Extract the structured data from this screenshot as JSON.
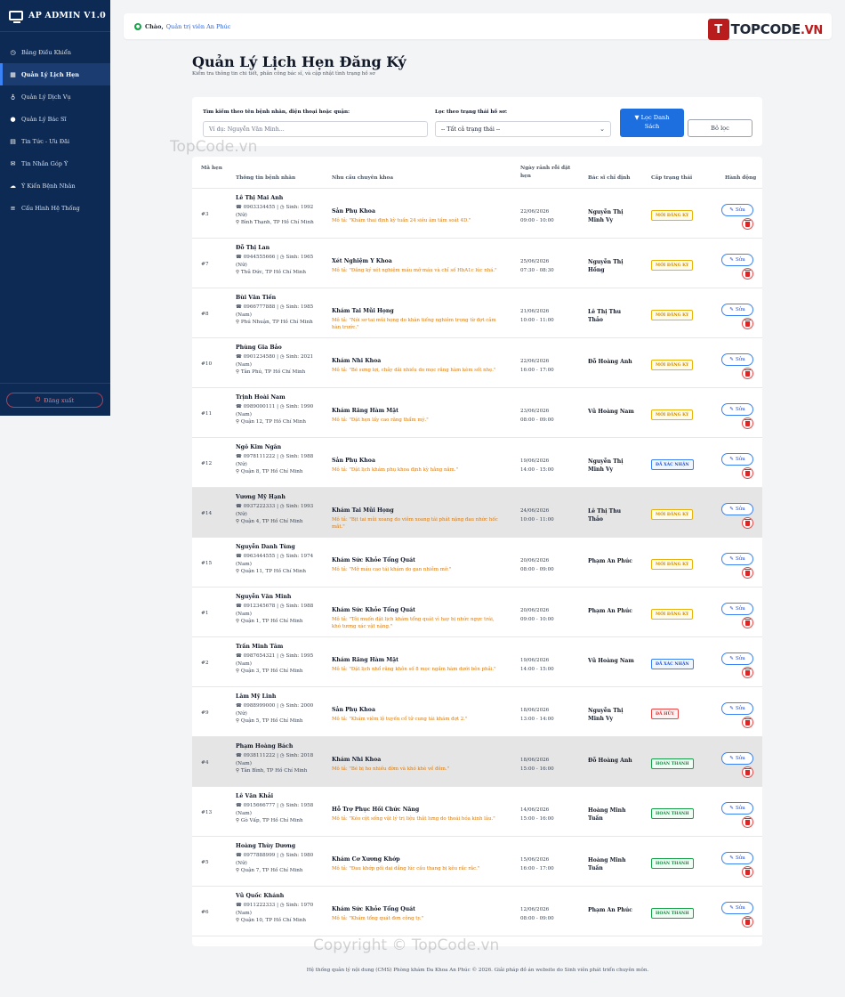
{
  "sidebar": {
    "brand": "AP ADMIN V1.0",
    "items": [
      {
        "label": "Bảng Điều Khiển",
        "icon": "dashboard-icon",
        "glyph": "◷",
        "active": false
      },
      {
        "label": "Quản Lý Lịch Hẹn",
        "icon": "calendar-icon",
        "glyph": "▦",
        "active": true
      },
      {
        "label": "Quản Lý Dịch Vụ",
        "icon": "stethoscope-icon",
        "glyph": "♁",
        "active": false
      },
      {
        "label": "Quản Lý Bác Sĩ",
        "icon": "doctor-icon",
        "glyph": "●",
        "active": false
      },
      {
        "label": "Tin Tức - Ưu Đãi",
        "icon": "newspaper-icon",
        "glyph": "▤",
        "active": false
      },
      {
        "label": "Tin Nhắn Góp Ý",
        "icon": "envelope-icon",
        "glyph": "✉",
        "active": false
      },
      {
        "label": "Ý Kiến Bệnh Nhân",
        "icon": "comments-icon",
        "glyph": "☁",
        "active": false
      },
      {
        "label": "Cấu Hình Hệ Thống",
        "icon": "sliders-icon",
        "glyph": "≡",
        "active": false
      }
    ],
    "logout": "Đăng xuất"
  },
  "topbar": {
    "greeting": "Chào,",
    "user": "Quản trị viên An Phúc",
    "logo_main": "TOPCODE",
    "logo_suffix": ".VN"
  },
  "watermarks": {
    "mid": "TopCode.vn",
    "bottom": "Copyright © TopCode.vn"
  },
  "page": {
    "title": "Quản Lý Lịch Hẹn Đăng Ký",
    "subtitle": "Kiểm tra thông tin chi tiết, phân công bác sĩ, và cập nhật tình trạng hồ sơ"
  },
  "filter": {
    "search_label": "Tìm kiếm theo tên bệnh nhân, điện thoại hoặc quận:",
    "search_placeholder": "Ví dụ: Nguyễn Văn Minh...",
    "status_label": "Lọc theo trạng thái hồ sơ:",
    "status_value": "-- Tất cả trạng thái --",
    "filter_button_line1": "Lọc Danh",
    "filter_button_line2": "Sách",
    "clear_button": "Bỏ lọc"
  },
  "table": {
    "headers": {
      "id": "Mã hẹn",
      "patient": "Thông tin bệnh nhân",
      "need": "Nhu cầu chuyên khoa",
      "date": "Ngày rảnh rỗi đặt hẹn",
      "doctor": "Bác sĩ chỉ định",
      "status": "Cấp trạng thái",
      "action": "Hành động"
    },
    "edit_label": "Sửa",
    "rows": [
      {
        "id": "#3",
        "name": "Lê Thị Mai Anh",
        "phone": "0903334455",
        "birth": "Sinh: 1992",
        "gender": "(Nữ)",
        "address": "Bình Thạnh, TP Hồ Chí Minh",
        "specialty": "Sản Phụ Khoa",
        "desc": "Mô tả: \"Khám thai định kỳ tuần 24 siêu âm tầm soát 4D.\"",
        "date": "22/06/2026",
        "time": "09:00 - 10:00",
        "doctor": "Nguyễn Thị Minh Vy",
        "status": "MỚI ĐĂNG KÝ",
        "status_type": "new",
        "highlight": false
      },
      {
        "id": "#7",
        "name": "Đỗ Thị Lan",
        "phone": "0944555666",
        "birth": "Sinh: 1965",
        "gender": "(Nữ)",
        "address": "Thủ Đức, TP Hồ Chí Minh",
        "specialty": "Xét Nghiệm Y Khoa",
        "desc": "Mô tả: \"Đăng ký xét nghiệm máu mỡ máu và chỉ số HbA1c lúc nhá.\"",
        "date": "25/06/2026",
        "time": "07:30 - 08:30",
        "doctor": "Nguyễn Thị Hồng",
        "status": "MỚI ĐĂNG KÝ",
        "status_type": "new",
        "highlight": false
      },
      {
        "id": "#8",
        "name": "Bùi Văn Tiến",
        "phone": "0966777888",
        "birth": "Sinh: 1985",
        "gender": "(Nam)",
        "address": "Phú Nhuận, TP Hồ Chí Minh",
        "specialty": "Khám Tai Mũi Họng",
        "desc": "Mô tả: \"Nói sơ tai mũi họng do khàn tiếng nghiêm trọng từ đợt cảm hàn trước.\"",
        "date": "21/06/2026",
        "time": "10:00 - 11:00",
        "doctor": "Lê Thị Thu Thảo",
        "status": "MỚI ĐĂNG KÝ",
        "status_type": "new",
        "highlight": false
      },
      {
        "id": "#10",
        "name": "Phùng Gia Bảo",
        "phone": "0901234580",
        "birth": "Sinh: 2021",
        "gender": "(Nam)",
        "address": "Tân Phú, TP Hồ Chí Minh",
        "specialty": "Khám Nhi Khoa",
        "desc": "Mô tả: \"Bé sưng lợi, chảy dãi nhiều do mọc răng hàm kèm sốt nhẹ.\"",
        "date": "22/06/2026",
        "time": "16:00 - 17:00",
        "doctor": "Đỗ Hoàng Anh",
        "status": "MỚI ĐĂNG KÝ",
        "status_type": "new",
        "highlight": false
      },
      {
        "id": "#11",
        "name": "Trịnh Hoài Nam",
        "phone": "0989000111",
        "birth": "Sinh: 1990",
        "gender": "(Nam)",
        "address": "Quận 12, TP Hồ Chí Minh",
        "specialty": "Khám Răng Hàm Mặt",
        "desc": "Mô tả: \"Đặt hẹn lấy cao răng thẩm mỹ.\"",
        "date": "23/06/2026",
        "time": "08:00 - 09:00",
        "doctor": "Vũ Hoàng Nam",
        "status": "MỚI ĐĂNG KÝ",
        "status_type": "new",
        "highlight": false
      },
      {
        "id": "#12",
        "name": "Ngô Kim Ngân",
        "phone": "0978111222",
        "birth": "Sinh: 1988",
        "gender": "(Nữ)",
        "address": "Quận 8, TP Hồ Chí Minh",
        "specialty": "Sản Phụ Khoa",
        "desc": "Mô tả: \"Đặt lịch khám phụ khoa định kỳ hằng năm.\"",
        "date": "19/06/2026",
        "time": "14:00 - 15:00",
        "doctor": "Nguyễn Thị Minh Vy",
        "status": "ĐÃ XÁC NHẬN",
        "status_type": "ok",
        "highlight": false
      },
      {
        "id": "#14",
        "name": "Vương Mỹ Hạnh",
        "phone": "0937222333",
        "birth": "Sinh: 1993",
        "gender": "(Nữ)",
        "address": "Quận 4, TP Hồ Chí Minh",
        "specialty": "Khám Tai Mũi Họng",
        "desc": "Mô tả: \"Bịt tai mũi xoang do viêm xoang tái phát nặng đau nhức hốc mắt.\"",
        "date": "24/06/2026",
        "time": "10:00 - 11:00",
        "doctor": "Lê Thị Thu Thảo",
        "status": "MỚI ĐĂNG KÝ",
        "status_type": "new",
        "highlight": true
      },
      {
        "id": "#15",
        "name": "Nguyễn Danh Tùng",
        "phone": "0963444555",
        "birth": "Sinh: 1974",
        "gender": "(Nam)",
        "address": "Quận 11, TP Hồ Chí Minh",
        "specialty": "Khám Sức Khỏe Tổng Quát",
        "desc": "Mô tả: \"Mỡ máu cao tái khám do gan nhiễm mỡ.\"",
        "date": "20/06/2026",
        "time": "08:00 - 09:00",
        "doctor": "Phạm An Phúc",
        "status": "MỚI ĐĂNG KÝ",
        "status_type": "new",
        "highlight": false
      },
      {
        "id": "#1",
        "name": "Nguyễn Văn Minh",
        "phone": "0912345678",
        "birth": "Sinh: 1988",
        "gender": "(Nam)",
        "address": "Quận 1, TP Hồ Chí Minh",
        "specialty": "Khám Sức Khỏe Tổng Quát",
        "desc": "Mô tả: \"Tôi muốn đặt lịch khám tổng quát vì hay bị nhức ngực trái, khó tương xác vật nặng.\"",
        "date": "20/06/2026",
        "time": "09:00 - 10:00",
        "doctor": "Phạm An Phúc",
        "status": "MỚI ĐĂNG KÝ",
        "status_type": "new",
        "highlight": false
      },
      {
        "id": "#2",
        "name": "Trần Minh Tâm",
        "phone": "0987654321",
        "birth": "Sinh: 1995",
        "gender": "(Nam)",
        "address": "Quận 3, TP Hồ Chí Minh",
        "specialty": "Khám Răng Hàm Mặt",
        "desc": "Mô tả: \"Đặt lịch nhổ răng khôn số 8 mọc ngầm hàm dưới bên phải.\"",
        "date": "19/06/2026",
        "time": "14:00 - 15:00",
        "doctor": "Vũ Hoàng Nam",
        "status": "ĐÃ XÁC NHẬN",
        "status_type": "ok",
        "highlight": false
      },
      {
        "id": "#9",
        "name": "Lâm Mỹ Linh",
        "phone": "0988999000",
        "birth": "Sinh: 2000",
        "gender": "(Nữ)",
        "address": "Quận 5, TP Hồ Chí Minh",
        "specialty": "Sản Phụ Khoa",
        "desc": "Mô tả: \"Khám viêm lộ tuyến cổ tử cung tái khám đợt 2.\"",
        "date": "18/06/2026",
        "time": "13:00 - 14:00",
        "doctor": "Nguyễn Thị Minh Vy",
        "status": "ĐÃ HỦY",
        "status_type": "cancel",
        "highlight": false
      },
      {
        "id": "#4",
        "name": "Phạm Hoàng Bách",
        "phone": "0938111222",
        "birth": "Sinh: 2018",
        "gender": "(Nam)",
        "address": "Tân Bình, TP Hồ Chí Minh",
        "specialty": "Khám Nhi Khoa",
        "desc": "Mô tả: \"Bé bị ho nhiều đờm và khó khè về đêm.\"",
        "date": "18/06/2026",
        "time": "15:00 - 16:00",
        "doctor": "Đỗ Hoàng Anh",
        "status": "HOÀN THÀNH",
        "status_type": "done",
        "highlight": true
      },
      {
        "id": "#13",
        "name": "Lê Văn Khải",
        "phone": "0915666777",
        "birth": "Sinh: 1958",
        "gender": "(Nam)",
        "address": "Gò Vấp, TP Hồ Chí Minh",
        "specialty": "Hỗ Trợ Phục Hồi Chức Năng",
        "desc": "Mô tả: \"Kéo cột sống vật lý trị liệu thắt lưng do thoái hóa kinh lâu.\"",
        "date": "14/06/2026",
        "time": "15:00 - 16:00",
        "doctor": "Hoàng Minh Tuấn",
        "status": "HOÀN THÀNH",
        "status_type": "done",
        "highlight": false
      },
      {
        "id": "#5",
        "name": "Hoàng Thùy Dương",
        "phone": "0977888999",
        "birth": "Sinh: 1980",
        "gender": "(Nữ)",
        "address": "Quận 7, TP Hồ Chí Minh",
        "specialty": "Khám Cơ Xương Khớp",
        "desc": "Mô tả: \"Đau khớp gối dai dẳng lúc cầu thang bị kêu rắc rắc.\"",
        "date": "15/06/2026",
        "time": "16:00 - 17:00",
        "doctor": "Hoàng Minh Tuấn",
        "status": "HOÀN THÀNH",
        "status_type": "done",
        "highlight": false
      },
      {
        "id": "#6",
        "name": "Vũ Quốc Khánh",
        "phone": "0911222333",
        "birth": "Sinh: 1970",
        "gender": "(Nam)",
        "address": "Quận 10, TP Hồ Chí Minh",
        "specialty": "Khám Sức Khỏe Tổng Quát",
        "desc": "Mô tả: \"Khám tổng quát đơn công ty.\"",
        "date": "12/06/2026",
        "time": "08:00 - 09:00",
        "doctor": "Phạm An Phúc",
        "status": "HOÀN THÀNH",
        "status_type": "done",
        "highlight": false
      }
    ]
  },
  "footer": "Hệ thống quản lý nội dung (CMS) Phòng khám Đa Khoa An Phúc © 2026. Giải pháp đồ án website do Sinh viên phát triển chuyên môn."
}
